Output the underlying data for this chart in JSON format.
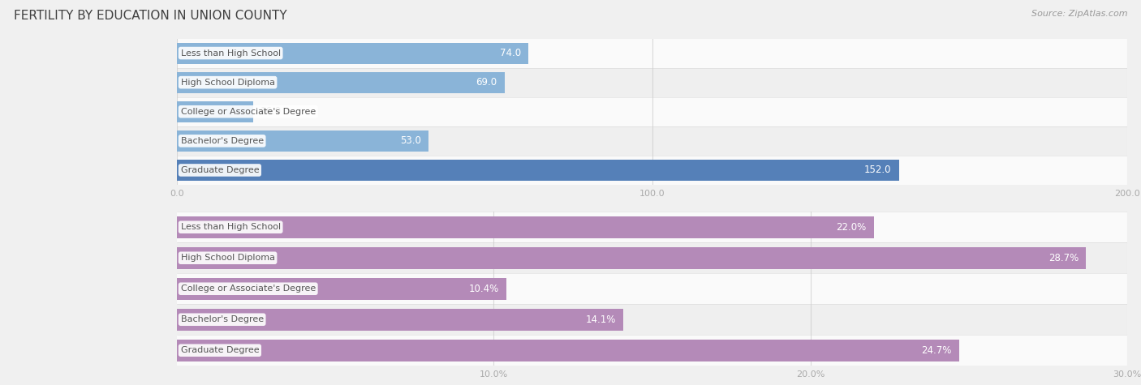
{
  "title": "FERTILITY BY EDUCATION IN UNION COUNTY",
  "source": "Source: ZipAtlas.com",
  "top_chart": {
    "categories": [
      "Less than High School",
      "High School Diploma",
      "College or Associate's Degree",
      "Bachelor's Degree",
      "Graduate Degree"
    ],
    "values": [
      74.0,
      69.0,
      16.0,
      53.0,
      152.0
    ],
    "bar_color_normal": "#8ab4d8",
    "bar_color_highlight": "#5580b8",
    "highlight_index": 4,
    "xlim": [
      0,
      200
    ],
    "xticks": [
      0.0,
      100.0,
      200.0
    ],
    "xticklabels": [
      "0.0",
      "100.0",
      "200.0"
    ]
  },
  "bottom_chart": {
    "categories": [
      "Less than High School",
      "High School Diploma",
      "College or Associate's Degree",
      "Bachelor's Degree",
      "Graduate Degree"
    ],
    "values": [
      22.0,
      28.7,
      10.4,
      14.1,
      24.7
    ],
    "bar_color": "#b48ab8",
    "xlim": [
      0,
      30
    ],
    "xticks": [
      10.0,
      20.0,
      30.0
    ],
    "xticklabels": [
      "10.0%",
      "20.0%",
      "30.0%"
    ]
  },
  "label_bg_color": "#ffffff",
  "label_text_color": "#555555",
  "value_text_color_inside": "#ffffff",
  "value_text_color_outside": "#555555",
  "bar_height": 0.72,
  "bg_color": "#f0f0f0",
  "row_color_light": "#fafafa",
  "row_color_dark": "#efefef",
  "title_color": "#404040",
  "source_color": "#999999",
  "tick_color": "#aaaaaa",
  "grid_color": "#cccccc",
  "title_fontsize": 11,
  "label_fontsize": 8,
  "value_fontsize": 8.5,
  "tick_fontsize": 8
}
